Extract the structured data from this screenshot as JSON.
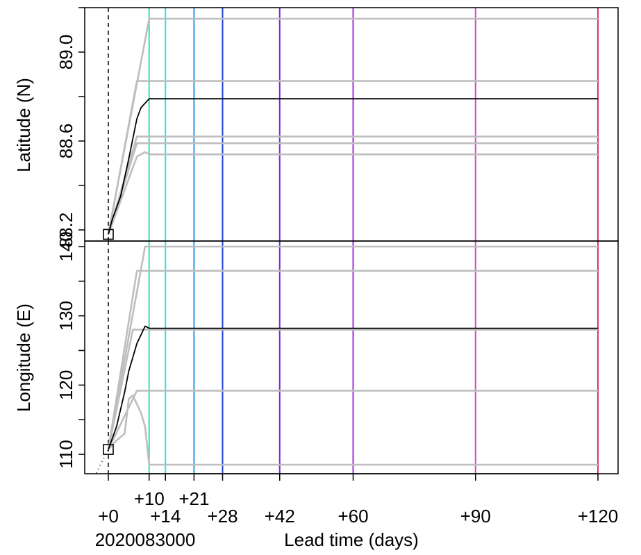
{
  "chart_data": {
    "type": "line",
    "xlabel": "Lead time (days)",
    "start_label": "2020083000",
    "xlim": [
      -12,
      124
    ],
    "x_ticks": [
      {
        "value": 0,
        "label": "+0",
        "row": 0
      },
      {
        "value": 10,
        "label": "+10",
        "row": 1
      },
      {
        "value": 14,
        "label": "+14",
        "row": 0
      },
      {
        "value": 21,
        "label": "+21",
        "row": 1
      },
      {
        "value": 28,
        "label": "+28",
        "row": 0
      },
      {
        "value": 42,
        "label": "+42",
        "row": 0
      },
      {
        "value": 60,
        "label": "+60",
        "row": 0
      },
      {
        "value": 90,
        "label": "+90",
        "row": 0
      },
      {
        "value": 120,
        "label": "+120",
        "row": 0
      }
    ],
    "lead_lines": [
      {
        "x": 10,
        "color": "#2fe6a5"
      },
      {
        "x": 14,
        "color": "#22e4e4"
      },
      {
        "x": 21,
        "color": "#2f9be0"
      },
      {
        "x": 28,
        "color": "#2040d8"
      },
      {
        "x": 42,
        "color": "#6a2be0"
      },
      {
        "x": 60,
        "color": "#a32ae6"
      },
      {
        "x": 90,
        "color": "#e03ad6"
      },
      {
        "x": 120,
        "color": "#e0306e"
      }
    ],
    "colors": {
      "ensemble": "#bebebe",
      "main": "#000000",
      "init_line": "#000000"
    },
    "panels": [
      {
        "name": "latitude",
        "ylabel": "Latitude (N)",
        "ylim": [
          88.15,
          89.2
        ],
        "y_ticks": [
          {
            "value": 88.2,
            "label": "88.2"
          },
          {
            "value": 88.4,
            "label": ""
          },
          {
            "value": 88.6,
            "label": "88.6"
          },
          {
            "value": 88.8,
            "label": ""
          },
          {
            "value": 89.0,
            "label": "89.0"
          },
          {
            "value": 89.2,
            "label": ""
          }
        ],
        "init_point": {
          "x": 0,
          "y": 88.18
        },
        "pre_track": [],
        "ensemble": [
          [
            [
              0,
              88.18
            ],
            [
              10,
              89.15
            ],
            [
              120,
              89.15
            ]
          ],
          [
            [
              0,
              88.18
            ],
            [
              7,
              88.87
            ],
            [
              120,
              88.87
            ]
          ],
          [
            [
              0,
              88.18
            ],
            [
              7,
              88.62
            ],
            [
              120,
              88.62
            ]
          ],
          [
            [
              0,
              88.18
            ],
            [
              7,
              88.59
            ],
            [
              120,
              88.59
            ]
          ],
          [
            [
              0,
              88.18
            ],
            [
              3,
              88.33
            ],
            [
              7,
              88.53
            ],
            [
              9,
              88.55
            ],
            [
              10,
              88.54
            ],
            [
              120,
              88.54
            ]
          ]
        ],
        "main": [
          [
            0,
            88.18
          ],
          [
            1,
            88.25
          ],
          [
            3,
            88.35
          ],
          [
            5,
            88.52
          ],
          [
            7,
            88.7
          ],
          [
            8,
            88.75
          ],
          [
            10,
            88.79
          ],
          [
            120,
            88.79
          ]
        ]
      },
      {
        "name": "longitude",
        "ylabel": "Longitude (E)",
        "ylim": [
          107.2,
          140.8
        ],
        "y_ticks": [
          {
            "value": 110,
            "label": "110"
          },
          {
            "value": 115,
            "label": ""
          },
          {
            "value": 120,
            "label": "120"
          },
          {
            "value": 125,
            "label": ""
          },
          {
            "value": 130,
            "label": "130"
          },
          {
            "value": 135,
            "label": ""
          },
          {
            "value": 140,
            "label": "140"
          }
        ],
        "init_point": {
          "x": 0,
          "y": 110.7
        },
        "pre_track": [
          [
            -3,
            107.3
          ],
          [
            0,
            110.7
          ]
        ],
        "ensemble": [
          [
            [
              0,
              110.7
            ],
            [
              9,
              140
            ],
            [
              120,
              140
            ]
          ],
          [
            [
              0,
              110.7
            ],
            [
              7,
              136.5
            ],
            [
              120,
              136.5
            ]
          ],
          [
            [
              0,
              110.7
            ],
            [
              6,
              128
            ],
            [
              120,
              128
            ]
          ],
          [
            [
              0,
              110.7
            ],
            [
              7,
              119.2
            ],
            [
              120,
              119.2
            ]
          ],
          [
            [
              0,
              110.7
            ],
            [
              2,
              112
            ],
            [
              4,
              113
            ],
            [
              5,
              118
            ],
            [
              6,
              118.5
            ],
            [
              8,
              116
            ],
            [
              9,
              114
            ],
            [
              10,
              108.5
            ],
            [
              120,
              108.5
            ]
          ]
        ],
        "main": [
          [
            0,
            110.7
          ],
          [
            2,
            114
          ],
          [
            4,
            119
          ],
          [
            5,
            122
          ],
          [
            7,
            126
          ],
          [
            9,
            128.5
          ],
          [
            10,
            128.2
          ],
          [
            120,
            128.2
          ]
        ]
      }
    ]
  }
}
